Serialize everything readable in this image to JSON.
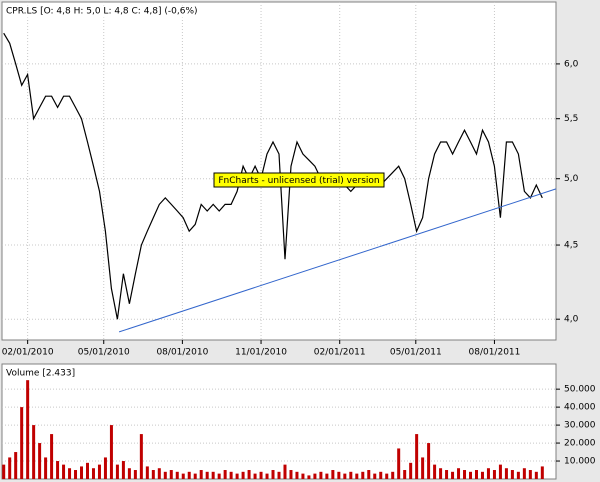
{
  "chart_data": [
    {
      "type": "line",
      "title": "CPR.LS [O: 4,8  H: 5,0  L: 4,8  C: 4,8] (-0,6%)",
      "annotation": "FnCharts - unlicensed (trial) version",
      "log_scale": true,
      "grid": true,
      "color": "#000000",
      "xlim": [
        "01/02/2010",
        "10/12/2011"
      ],
      "xticks": [
        "02/01/2010",
        "05/01/2010",
        "08/01/2010",
        "11/01/2010",
        "02/01/2011",
        "05/01/2011",
        "08/01/2011"
      ],
      "ylim": [
        3.87,
        6.62
      ],
      "yticks": [
        {
          "value": 4,
          "label": "4,0"
        },
        {
          "value": 4.5,
          "label": "4,5"
        },
        {
          "value": 5,
          "label": "5,0"
        },
        {
          "value": 5.5,
          "label": "5,5"
        },
        {
          "value": 6,
          "label": "6,0"
        }
      ],
      "x": [
        "01/04/2010",
        "01/11/2010",
        "01/18/2010",
        "01/25/2010",
        "02/01/2010",
        "02/08/2010",
        "02/15/2010",
        "02/22/2010",
        "03/01/2010",
        "03/08/2010",
        "03/15/2010",
        "03/22/2010",
        "03/29/2010",
        "04/05/2010",
        "04/12/2010",
        "04/19/2010",
        "04/26/2010",
        "05/03/2010",
        "05/10/2010",
        "05/17/2010",
        "05/24/2010",
        "05/31/2010",
        "06/07/2010",
        "06/14/2010",
        "06/21/2010",
        "06/28/2010",
        "07/05/2010",
        "07/12/2010",
        "07/19/2010",
        "07/26/2010",
        "08/02/2010",
        "08/09/2010",
        "08/16/2010",
        "08/23/2010",
        "08/30/2010",
        "09/06/2010",
        "09/13/2010",
        "09/20/2010",
        "09/27/2010",
        "10/04/2010",
        "10/11/2010",
        "10/18/2010",
        "10/25/2010",
        "11/01/2010",
        "11/08/2010",
        "11/15/2010",
        "11/22/2010",
        "11/29/2010",
        "12/06/2010",
        "12/13/2010",
        "12/20/2010",
        "12/27/2010",
        "01/03/2011",
        "01/10/2011",
        "01/17/2011",
        "01/24/2011",
        "01/31/2011",
        "02/07/2011",
        "02/14/2011",
        "02/21/2011",
        "02/28/2011",
        "03/07/2011",
        "03/14/2011",
        "03/21/2011",
        "03/28/2011",
        "04/04/2011",
        "04/11/2011",
        "04/18/2011",
        "04/25/2011",
        "05/02/2011",
        "05/09/2011",
        "05/16/2011",
        "05/23/2011",
        "05/30/2011",
        "06/06/2011",
        "06/13/2011",
        "06/20/2011",
        "06/27/2011",
        "07/04/2011",
        "07/11/2011",
        "07/18/2011",
        "07/25/2011",
        "08/01/2011",
        "08/08/2011",
        "08/15/2011",
        "08/22/2011",
        "08/29/2011",
        "09/05/2011",
        "09/12/2011",
        "09/19/2011",
        "09/26/2011"
      ],
      "values": [
        6.3,
        6.2,
        6.0,
        5.8,
        5.9,
        5.5,
        5.6,
        5.7,
        5.7,
        5.6,
        5.7,
        5.7,
        5.6,
        5.5,
        5.3,
        5.1,
        4.9,
        4.6,
        4.2,
        4.0,
        4.3,
        4.1,
        4.3,
        4.5,
        4.6,
        4.7,
        4.8,
        4.85,
        4.8,
        4.75,
        4.7,
        4.6,
        4.65,
        4.8,
        4.75,
        4.8,
        4.75,
        4.8,
        4.8,
        4.9,
        5.1,
        5.0,
        5.1,
        5.0,
        5.2,
        5.3,
        5.2,
        4.4,
        5.1,
        5.3,
        5.2,
        5.15,
        5.1,
        5.0,
        4.95,
        5.0,
        5.0,
        4.95,
        4.9,
        4.95,
        5.0,
        5.0,
        5.0,
        4.95,
        5.0,
        5.05,
        5.1,
        5.0,
        4.8,
        4.6,
        4.7,
        5.0,
        5.2,
        5.3,
        5.3,
        5.2,
        5.3,
        5.4,
        5.3,
        5.2,
        5.4,
        5.3,
        5.1,
        4.7,
        5.3,
        5.3,
        5.2,
        4.9,
        4.85,
        4.95,
        4.85
      ],
      "trendline": {
        "color": "#3366cc",
        "x": [
          "05/19/2010",
          "10/12/2011"
        ],
        "values": [
          3.92,
          4.92
        ]
      }
    },
    {
      "type": "bar",
      "title": "Volume [2.433]",
      "color": "#c00000",
      "xlim": [
        "01/02/2010",
        "10/12/2011"
      ],
      "ylim": [
        0,
        64000
      ],
      "yticks": [
        {
          "value": 10000,
          "label": "10.000"
        },
        {
          "value": 20000,
          "label": "20.000"
        },
        {
          "value": 30000,
          "label": "30.000"
        },
        {
          "value": 40000,
          "label": "40.000"
        },
        {
          "value": 50000,
          "label": "50.000"
        }
      ],
      "x": [
        "01/04/2010",
        "01/11/2010",
        "01/18/2010",
        "01/25/2010",
        "02/01/2010",
        "02/08/2010",
        "02/15/2010",
        "02/22/2010",
        "03/01/2010",
        "03/08/2010",
        "03/15/2010",
        "03/22/2010",
        "03/29/2010",
        "04/05/2010",
        "04/12/2010",
        "04/19/2010",
        "04/26/2010",
        "05/03/2010",
        "05/10/2010",
        "05/17/2010",
        "05/24/2010",
        "05/31/2010",
        "06/07/2010",
        "06/14/2010",
        "06/21/2010",
        "06/28/2010",
        "07/05/2010",
        "07/12/2010",
        "07/19/2010",
        "07/26/2010",
        "08/02/2010",
        "08/09/2010",
        "08/16/2010",
        "08/23/2010",
        "08/30/2010",
        "09/06/2010",
        "09/13/2010",
        "09/20/2010",
        "09/27/2010",
        "10/04/2010",
        "10/11/2010",
        "10/18/2010",
        "10/25/2010",
        "11/01/2010",
        "11/08/2010",
        "11/15/2010",
        "11/22/2010",
        "11/29/2010",
        "12/06/2010",
        "12/13/2010",
        "12/20/2010",
        "12/27/2010",
        "01/03/2011",
        "01/10/2011",
        "01/17/2011",
        "01/24/2011",
        "01/31/2011",
        "02/07/2011",
        "02/14/2011",
        "02/21/2011",
        "02/28/2011",
        "03/07/2011",
        "03/14/2011",
        "03/21/2011",
        "03/28/2011",
        "04/04/2011",
        "04/11/2011",
        "04/18/2011",
        "04/25/2011",
        "05/02/2011",
        "05/09/2011",
        "05/16/2011",
        "05/23/2011",
        "05/30/2011",
        "06/06/2011",
        "06/13/2011",
        "06/20/2011",
        "06/27/2011",
        "07/04/2011",
        "07/11/2011",
        "07/18/2011",
        "07/25/2011",
        "08/01/2011",
        "08/08/2011",
        "08/15/2011",
        "08/22/2011",
        "08/29/2011",
        "09/05/2011",
        "09/12/2011",
        "09/19/2011",
        "09/26/2011"
      ],
      "values": [
        8000,
        12000,
        15000,
        40000,
        55000,
        30000,
        20000,
        12000,
        25000,
        10000,
        8000,
        6000,
        5000,
        7000,
        9000,
        6000,
        8000,
        12000,
        30000,
        8000,
        10000,
        6000,
        5000,
        25000,
        7000,
        5000,
        6000,
        4000,
        5000,
        4000,
        3000,
        4000,
        3000,
        5000,
        4000,
        4000,
        3000,
        5000,
        4000,
        3000,
        4000,
        5000,
        3000,
        4000,
        3000,
        5000,
        4000,
        8000,
        5000,
        4000,
        3000,
        2000,
        3000,
        4000,
        3000,
        5000,
        4000,
        3000,
        4000,
        3000,
        4000,
        5000,
        3000,
        4000,
        3000,
        4000,
        17000,
        5000,
        9000,
        25000,
        12000,
        20000,
        8000,
        6000,
        5000,
        4000,
        6000,
        5000,
        4000,
        5000,
        4000,
        6000,
        5000,
        8000,
        6000,
        5000,
        4000,
        6000,
        5000,
        4000,
        7000
      ]
    }
  ]
}
